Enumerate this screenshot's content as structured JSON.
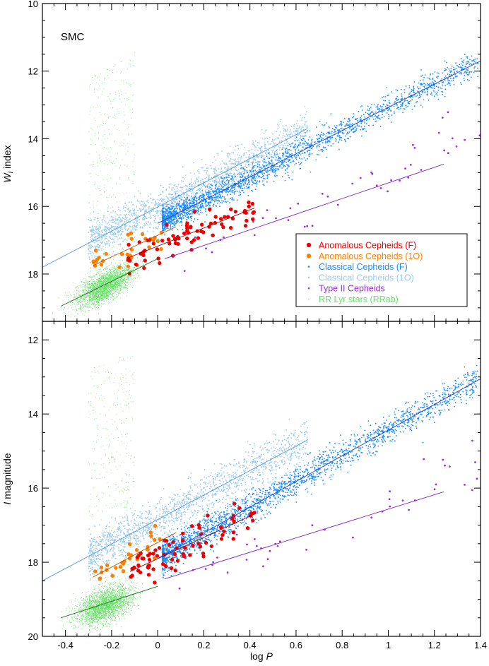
{
  "chart_data": [
    {
      "type": "scatter",
      "panel": "top",
      "label": "SMC",
      "xlabel": "log P",
      "ylabel": "W_I index",
      "ylabel_main": "W",
      "ylabel_sub": "I",
      "ylabel_rest": "index",
      "xlim": [
        -0.5,
        1.4
      ],
      "ylim": [
        19.4,
        10
      ],
      "y_inverted": true,
      "yticks": [
        "10",
        "12",
        "14",
        "16",
        "18"
      ],
      "series": [
        {
          "name": "Anomalous Cepheids (F)",
          "color": "#ee0000",
          "fit": {
            "x": [
              -0.12,
              0.42
            ],
            "y": [
              17.5,
              16.05
            ]
          }
        },
        {
          "name": "Anomalous Cepheids (10)",
          "color": "#ff7f00",
          "fit": {
            "x": [
              -0.28,
              0.08
            ],
            "y": [
              17.75,
              16.6
            ]
          }
        },
        {
          "name": "Classical Cepheids (F)",
          "color": "#1a8cff",
          "fit": {
            "x": [
              0.0,
              1.4
            ],
            "y": [
              16.5,
              11.7
            ]
          }
        },
        {
          "name": "Classical Cepheids (10)",
          "color": "#9ccbf2",
          "fit": {
            "x": [
              -0.5,
              0.65
            ],
            "y": [
              17.8,
              13.7
            ]
          }
        },
        {
          "name": "Type II Cepheids",
          "color": "#a030d8",
          "fit": {
            "x": [
              0.03,
              1.24
            ],
            "y": [
              17.55,
              14.75
            ]
          }
        },
        {
          "name": "RR Lyr stars (RRab)",
          "color": "#66e066",
          "fit": {
            "x": [
              -0.42,
              0.0
            ],
            "y": [
              18.95,
              17.55
            ]
          }
        }
      ]
    },
    {
      "type": "scatter",
      "panel": "bottom",
      "xlabel": "log P",
      "ylabel": "I magnitude",
      "ylabel_main": "I",
      "ylabel_rest": "magnitude",
      "xlim": [
        -0.5,
        1.4
      ],
      "ylim": [
        20,
        11.5
      ],
      "y_inverted": true,
      "xticks": [
        "-0.4",
        "-0.2",
        "0",
        "0.2",
        "0.4",
        "0.6",
        "0.8",
        "1",
        "1.2",
        "1.4"
      ],
      "yticks": [
        "12",
        "14",
        "16",
        "18",
        "20"
      ],
      "series": [
        {
          "name": "Anomalous Cepheids (F)",
          "color": "#ee0000",
          "fit": {
            "x": [
              -0.12,
              0.42
            ],
            "y": [
              18.25,
              16.7
            ]
          }
        },
        {
          "name": "Anomalous Cepheids (10)",
          "color": "#ff7f00",
          "fit": {
            "x": [
              -0.28,
              0.08
            ],
            "y": [
              18.4,
              17.2
            ]
          }
        },
        {
          "name": "Classical Cepheids (F)",
          "color": "#1a8cff",
          "fit": {
            "x": [
              0.0,
              1.4
            ],
            "y": [
              17.9,
              13.05
            ]
          }
        },
        {
          "name": "Classical Cepheids (10)",
          "color": "#9ccbf2",
          "fit": {
            "x": [
              -0.5,
              0.65
            ],
            "y": [
              18.5,
              14.7
            ]
          }
        },
        {
          "name": "Type II Cepheids",
          "color": "#a030d8",
          "fit": {
            "x": [
              0.03,
              1.24
            ],
            "y": [
              18.45,
              16.1
            ]
          }
        },
        {
          "name": "RR Lyr stars (RRab)",
          "color": "#66e066",
          "fit": {
            "x": [
              -0.42,
              0.0
            ],
            "y": [
              19.5,
              18.65
            ]
          }
        }
      ]
    }
  ],
  "legend": {
    "placement": "lower-right of top panel",
    "items": [
      {
        "label": "Anomalous Cepheids (F)",
        "color": "#ee0000"
      },
      {
        "label": "Anomalous Cepheids (1O)",
        "color": "#ff7f00"
      },
      {
        "label": "Classical Cepheids (F)",
        "color": "#1a8cff"
      },
      {
        "label": "Classical Cepheids (1O)",
        "color": "#9ccbf2"
      },
      {
        "label": "Type II Cepheids",
        "color": "#a030d8"
      },
      {
        "label": "RR Lyr stars (RRab)",
        "color": "#66e066"
      }
    ]
  },
  "xaxis": {
    "label_main": "log",
    "label_var": "P"
  }
}
